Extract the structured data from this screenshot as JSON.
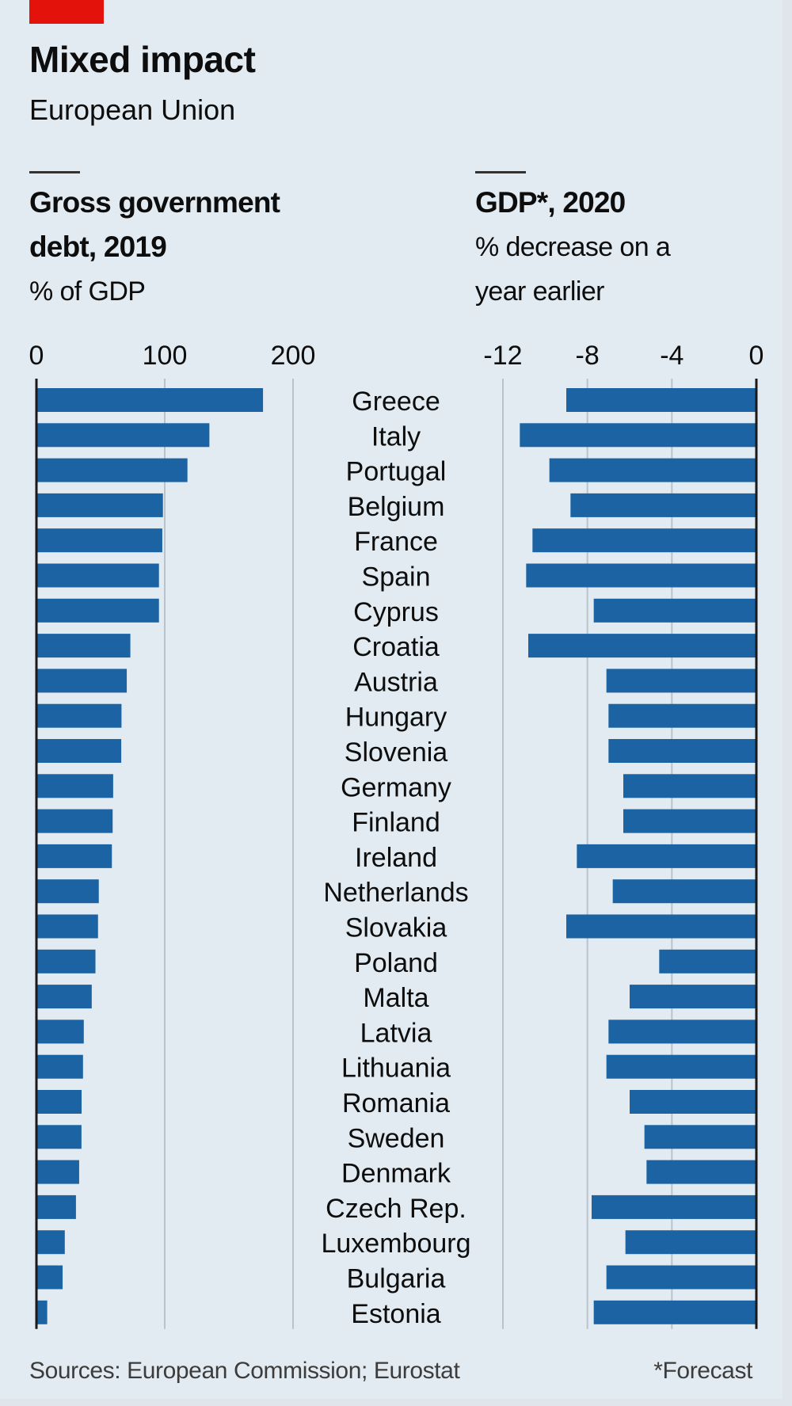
{
  "header": {
    "title": "Mixed impact",
    "subtitle": "European Union"
  },
  "panels": {
    "left": {
      "title_line1": "Gross government",
      "title_line2": "debt, 2019",
      "unit": "% of GDP"
    },
    "right": {
      "title_line1": "GDP*, 2020",
      "unit_line1": "% decrease on a",
      "unit_line2": "year earlier"
    }
  },
  "footer": {
    "source": "Sources: European Commission; Eurostat",
    "footnote": "*Forecast"
  },
  "colors": {
    "bar": "#1b63a3",
    "brand_red": "#e3120b",
    "background": "#e2ebf1"
  },
  "chart_data": [
    {
      "type": "bar",
      "orientation": "horizontal",
      "title": "Gross government debt, 2019",
      "xlabel": "% of GDP",
      "xlim": [
        0,
        200
      ],
      "xticks": [
        0,
        100,
        200
      ],
      "xtick_labels": [
        "0",
        "100",
        "200"
      ],
      "grid": true,
      "categories": [
        "Greece",
        "Italy",
        "Portugal",
        "Belgium",
        "France",
        "Spain",
        "Cyprus",
        "Croatia",
        "Austria",
        "Hungary",
        "Slovenia",
        "Germany",
        "Finland",
        "Ireland",
        "Netherlands",
        "Slovakia",
        "Poland",
        "Malta",
        "Latvia",
        "Lithuania",
        "Romania",
        "Sweden",
        "Denmark",
        "Czech Rep.",
        "Luxembourg",
        "Bulgaria",
        "Estonia"
      ],
      "values": [
        176.6,
        134.8,
        117.7,
        98.6,
        98.1,
        95.5,
        95.5,
        73.2,
        70.4,
        66.3,
        66.1,
        59.8,
        59.4,
        58.8,
        48.6,
        48.0,
        46.0,
        43.1,
        36.9,
        36.3,
        35.2,
        35.1,
        33.3,
        30.8,
        22.1,
        20.4,
        8.4
      ]
    },
    {
      "type": "bar",
      "orientation": "horizontal",
      "title": "GDP*, 2020",
      "xlabel": "% decrease on a year earlier",
      "xlim": [
        -12,
        0
      ],
      "xticks": [
        -12,
        -8,
        -4,
        0
      ],
      "xtick_labels": [
        "-12",
        "-8",
        "-4",
        "0"
      ],
      "grid": true,
      "categories": [
        "Greece",
        "Italy",
        "Portugal",
        "Belgium",
        "France",
        "Spain",
        "Cyprus",
        "Croatia",
        "Austria",
        "Hungary",
        "Slovenia",
        "Germany",
        "Finland",
        "Ireland",
        "Netherlands",
        "Slovakia",
        "Poland",
        "Malta",
        "Latvia",
        "Lithuania",
        "Romania",
        "Sweden",
        "Denmark",
        "Czech Rep.",
        "Luxembourg",
        "Bulgaria",
        "Estonia"
      ],
      "values": [
        -9.0,
        -11.2,
        -9.8,
        -8.8,
        -10.6,
        -10.9,
        -7.7,
        -10.8,
        -7.1,
        -7.0,
        -7.0,
        -6.3,
        -6.3,
        -8.5,
        -6.8,
        -9.0,
        -4.6,
        -6.0,
        -7.0,
        -7.1,
        -6.0,
        -5.3,
        -5.2,
        -7.8,
        -6.2,
        -7.1,
        -7.7
      ]
    }
  ]
}
